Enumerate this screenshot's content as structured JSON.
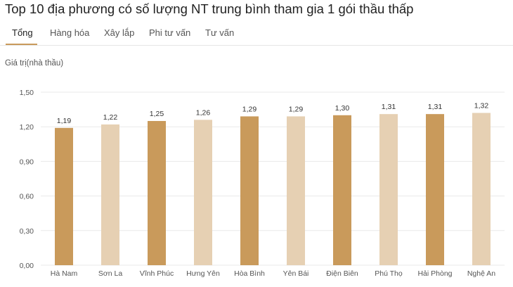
{
  "title": "Top 10 địa phương có số lượng NT trung bình tham gia 1 gói thầu thấp",
  "tabs": [
    {
      "label": "Tổng",
      "active": true
    },
    {
      "label": "Hàng hóa",
      "active": false
    },
    {
      "label": "Xây lắp",
      "active": false
    },
    {
      "label": "Phi tư vấn",
      "active": false
    },
    {
      "label": "Tư vấn",
      "active": false
    }
  ],
  "colors": {
    "dark": "#c99a5b",
    "light": "#e6d0b3",
    "accent": "#c99a5b"
  },
  "chart_data": {
    "type": "bar",
    "title": "Top 10 địa phương có số lượng NT trung bình tham gia 1 gói thầu thấp",
    "ylabel": "Giá trị(nhà thầu)",
    "xlabel": "",
    "ylim": [
      0,
      1.5
    ],
    "yticks": [
      "0,00",
      "0,30",
      "0,60",
      "0,90",
      "1,20",
      "1,50"
    ],
    "grid": true,
    "categories": [
      "Hà Nam",
      "Sơn La",
      "Vĩnh Phúc",
      "Hưng Yên",
      "Hòa Bình",
      "Yên Bái",
      "Điện Biên",
      "Phú Thọ",
      "Hải Phòng",
      "Nghệ An"
    ],
    "values": [
      1.19,
      1.22,
      1.25,
      1.26,
      1.29,
      1.29,
      1.3,
      1.31,
      1.31,
      1.32
    ],
    "value_labels": [
      "1,19",
      "1,22",
      "1,25",
      "1,26",
      "1,29",
      "1,29",
      "1,30",
      "1,31",
      "1,31",
      "1,32"
    ],
    "bar_colors": [
      "#c99a5b",
      "#e6d0b3",
      "#c99a5b",
      "#e6d0b3",
      "#c99a5b",
      "#e6d0b3",
      "#c99a5b",
      "#e6d0b3",
      "#c99a5b",
      "#e6d0b3"
    ]
  }
}
